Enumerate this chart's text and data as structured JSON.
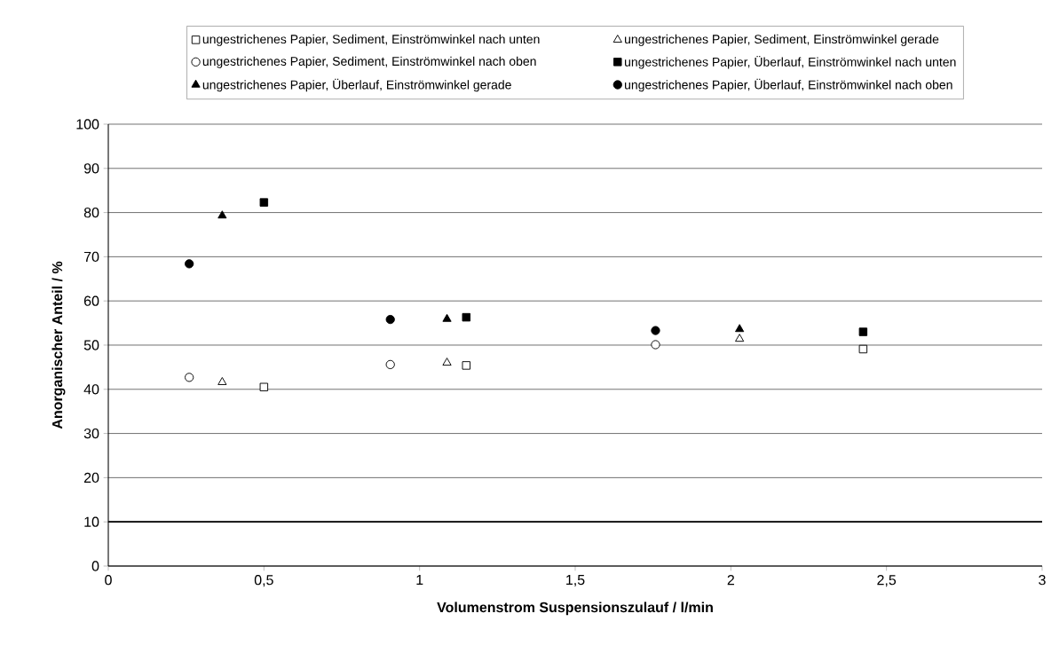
{
  "chart_data": {
    "type": "scatter",
    "xlabel": "Volumenstrom Suspensionszulauf / l/min",
    "ylabel": "Anorganischer Anteil / %",
    "xlim": [
      0,
      3
    ],
    "ylim": [
      0,
      100
    ],
    "xticks": [
      0,
      {
        "value": 0.5,
        "label": "0,5"
      },
      1,
      {
        "value": 1.5,
        "label": "1,5"
      },
      2,
      {
        "value": 2.5,
        "label": "2,5"
      },
      3
    ],
    "yticks": [
      0,
      10,
      20,
      30,
      40,
      50,
      60,
      70,
      80,
      90,
      100
    ],
    "grid": "y",
    "legend": "top",
    "ref_lines": [
      {
        "axis": "y",
        "value": 10,
        "color": "#000000"
      }
    ],
    "series": [
      {
        "name": "ungestrichenes Papier, Sediment, Einströmwinkel nach unten",
        "marker": "square",
        "color": "#ffffff",
        "x": [
          0.5,
          1.15,
          2.425
        ],
        "values": [
          40.5,
          45.4,
          49.1
        ]
      },
      {
        "name": "ungestrichenes Papier, Sediment, Einströmwinkel gerade",
        "marker": "triangle",
        "color": "#ffffff",
        "x": [
          0.366,
          1.088,
          2.028
        ],
        "values": [
          41.6,
          46.0,
          51.4
        ]
      },
      {
        "name": "ungestrichenes Papier, Sediment, Einströmwinkel nach oben",
        "marker": "circle",
        "color": "#ffffff",
        "x": [
          0.26,
          0.906,
          1.758
        ],
        "values": [
          42.7,
          45.6,
          50.1
        ]
      },
      {
        "name": "ungestrichenes Papier, Überlauf, Einströmwinkel nach unten",
        "marker": "square",
        "color": "#000000",
        "x": [
          0.5,
          1.15,
          2.425
        ],
        "values": [
          82.3,
          56.3,
          53.0
        ]
      },
      {
        "name": "ungestrichenes Papier, Überlauf, Einströmwinkel gerade",
        "marker": "triangle",
        "color": "#000000",
        "x": [
          0.366,
          1.088,
          2.028
        ],
        "values": [
          79.3,
          55.9,
          53.6
        ]
      },
      {
        "name": "ungestrichenes Papier, Überlauf, Einströmwinkel nach oben",
        "marker": "circle",
        "color": "#000000",
        "x": [
          0.26,
          0.906,
          1.758
        ],
        "values": [
          68.4,
          55.8,
          53.3
        ]
      }
    ]
  }
}
